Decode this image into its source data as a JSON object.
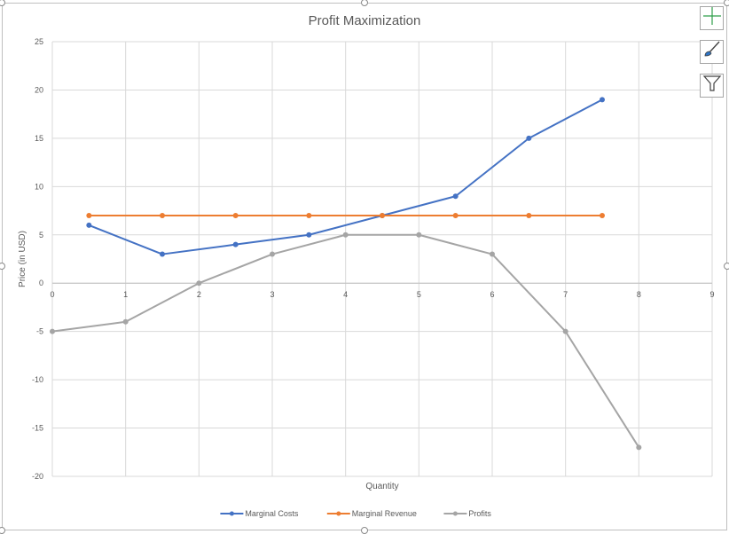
{
  "chart_data": {
    "type": "line",
    "title": "Profit Maximization",
    "xlabel": "Quantity",
    "ylabel": "Price (in USD)",
    "xlim": [
      0,
      9
    ],
    "ylim": [
      -20,
      25
    ],
    "x_ticks": [
      "0",
      "1",
      "2",
      "3",
      "4",
      "5",
      "6",
      "7",
      "8",
      "9"
    ],
    "y_ticks": [
      "25",
      "20",
      "15",
      "10",
      "5",
      "0",
      "-5",
      "-10",
      "-15",
      "-20"
    ],
    "grid": true,
    "legend_position": "bottom",
    "series": [
      {
        "name": "Marginal Costs",
        "color": "#4472c4",
        "x": [
          0.5,
          1.5,
          2.5,
          3.5,
          4.5,
          5.5,
          6.5,
          7.5
        ],
        "y": [
          6,
          3,
          4,
          5,
          7,
          9,
          15,
          19
        ]
      },
      {
        "name": "Marginal Revenue",
        "color": "#ed7d31",
        "x": [
          0.5,
          1.5,
          2.5,
          3.5,
          4.5,
          5.5,
          6.5,
          7.5
        ],
        "y": [
          7,
          7,
          7,
          7,
          7,
          7,
          7,
          7
        ]
      },
      {
        "name": "Profits",
        "color": "#a5a5a5",
        "x": [
          0,
          1,
          2,
          3,
          4,
          5,
          6,
          7,
          8
        ],
        "y": [
          -5,
          -4,
          0,
          3,
          5,
          5,
          3,
          -5,
          -17
        ]
      }
    ]
  },
  "side_buttons": {
    "elements_icon": "plus-icon",
    "styles_icon": "brush-icon",
    "filter_icon": "filter-icon"
  }
}
